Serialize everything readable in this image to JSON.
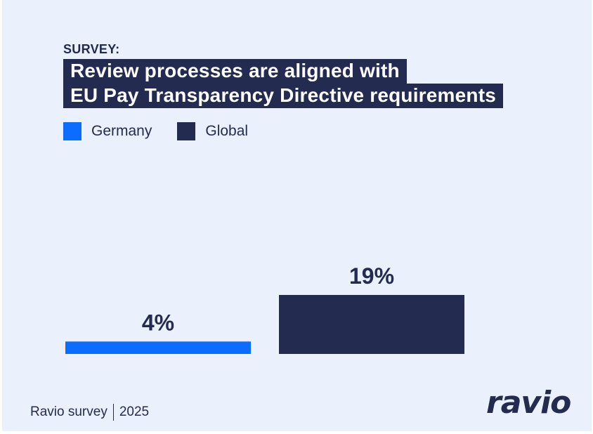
{
  "header": {
    "kicker": "SURVEY:",
    "title_line1": "Review processes are aligned with",
    "title_line2": "EU Pay Transparency Directive requirements"
  },
  "legend": [
    {
      "label": "Germany",
      "color": "#0b6cff"
    },
    {
      "label": "Global",
      "color": "#232b50"
    }
  ],
  "chart_data": {
    "type": "bar",
    "categories": [
      "Germany",
      "Global"
    ],
    "values": [
      4,
      19
    ],
    "value_labels": [
      "4%",
      "19%"
    ],
    "colors": [
      "#0b6cff",
      "#232b50"
    ],
    "unit": "%",
    "ylim": [
      0,
      100
    ],
    "grid": false,
    "legend_position": "top-left"
  },
  "footer": {
    "source": "Ravio survey",
    "year": "2025",
    "logo_text": "ravio"
  }
}
